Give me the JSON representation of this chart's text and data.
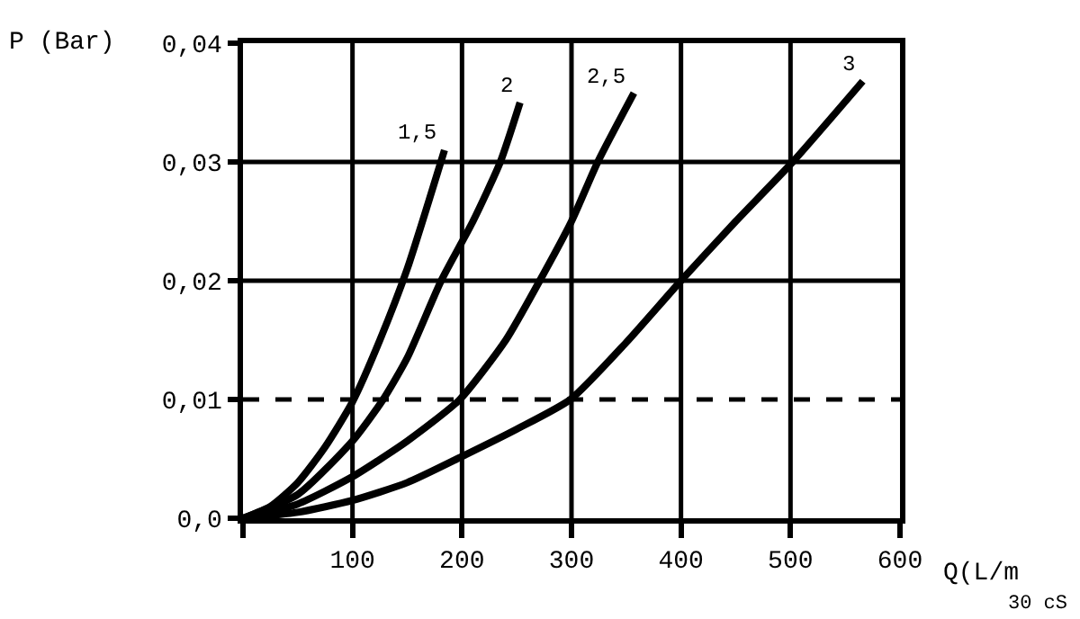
{
  "chart_data": {
    "type": "line",
    "xlabel": "Q(L/m",
    "ylabel": "P (Bar)",
    "annotations": [
      "30 cS"
    ],
    "xlim": [
      0,
      600
    ],
    "ylim": [
      0,
      0.04
    ],
    "xticks": [
      {
        "value": 0,
        "label": null
      },
      100,
      200,
      300,
      400,
      500,
      600
    ],
    "yticks": [
      {
        "value": 0,
        "label": "0,0"
      },
      {
        "value": 0.01,
        "label": "0,01"
      },
      {
        "value": 0.02,
        "label": "0,02"
      },
      {
        "value": 0.03,
        "label": "0,03"
      },
      {
        "value": 0.04,
        "label": "0,04"
      }
    ],
    "grid": true,
    "legend": false,
    "marker": "none",
    "line_style": "solid",
    "ref_lines": [
      {
        "axis": "y",
        "value": 0.01,
        "label": null,
        "color": "#000000",
        "line_style": "dashed"
      }
    ],
    "series": [
      {
        "name": "1,5",
        "color": "#000000",
        "x": [
          0,
          25,
          50,
          75,
          100,
          125,
          150,
          184
        ],
        "values": [
          0,
          0.001,
          0.003,
          0.006,
          0.0098,
          0.015,
          0.021,
          0.031
        ]
      },
      {
        "name": "2",
        "color": "#000000",
        "x": [
          0,
          50,
          100,
          128,
          150,
          181,
          210,
          235,
          253
        ],
        "values": [
          0,
          0.002,
          0.0065,
          0.01,
          0.0135,
          0.02,
          0.025,
          0.03,
          0.035
        ]
      },
      {
        "name": "2,5",
        "color": "#000000",
        "x": [
          0,
          50,
          100,
          150,
          198,
          240,
          271,
          300,
          324,
          357
        ],
        "values": [
          0,
          0.0012,
          0.0035,
          0.0065,
          0.01,
          0.015,
          0.02,
          0.025,
          0.03,
          0.0358
        ]
      },
      {
        "name": "3",
        "color": "#000000",
        "x": [
          0,
          50,
          100,
          150,
          200,
          250,
          299,
          350,
          400,
          450,
          502,
          566
        ],
        "values": [
          0,
          0.0005,
          0.0015,
          0.003,
          0.0052,
          0.0075,
          0.01,
          0.0148,
          0.02,
          0.025,
          0.03,
          0.0368
        ]
      }
    ]
  }
}
